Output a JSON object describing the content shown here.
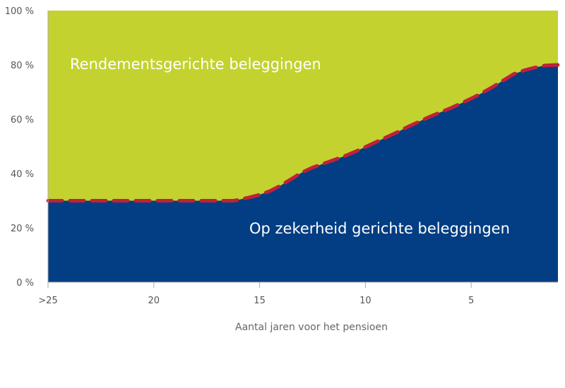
{
  "chart_data": {
    "type": "area",
    "xlabel": "Aantal jaren voor het pensioen",
    "ylabel": "",
    "x_ticks": [
      {
        "value": 25,
        "label": ">25"
      },
      {
        "value": 20,
        "label": "20"
      },
      {
        "value": 15,
        "label": "15"
      },
      {
        "value": 10,
        "label": "10"
      },
      {
        "value": 5,
        "label": "5"
      }
    ],
    "y_ticks": [
      {
        "value": 0,
        "label": "0 %"
      },
      {
        "value": 20,
        "label": "20 %"
      },
      {
        "value": 40,
        "label": "40 %"
      },
      {
        "value": 60,
        "label": "60 %"
      },
      {
        "value": 80,
        "label": "80 %"
      },
      {
        "value": 100,
        "label": "100 %"
      }
    ],
    "xlim": [
      25,
      0.9
    ],
    "ylim": [
      0,
      100
    ],
    "x_reversed": true,
    "grid": false,
    "series": [
      {
        "name": "Op zekerheid gerichte beleggingen",
        "color": "#033e84",
        "x": [
          25,
          22,
          20,
          18,
          16.2,
          15.5,
          15,
          14.5,
          14,
          13.5,
          13,
          12.5,
          12,
          11.5,
          11,
          10.5,
          10,
          9.5,
          9,
          8.5,
          8,
          7.5,
          7,
          6.5,
          6,
          5.5,
          5,
          4.5,
          4,
          3.5,
          3,
          2.5,
          2,
          1.5,
          0.9
        ],
        "values": [
          30,
          30,
          30,
          30,
          30,
          31.2,
          32.2,
          33.6,
          35.6,
          38.0,
          40.4,
          42.2,
          43.6,
          45.0,
          46.4,
          48.0,
          49.8,
          51.6,
          53.4,
          55.2,
          57.2,
          59.0,
          60.8,
          62.4,
          64.0,
          65.8,
          67.6,
          69.6,
          71.8,
          74.2,
          76.6,
          78.0,
          79.0,
          79.8,
          80.0
        ]
      },
      {
        "name": "Rendementsgerichte beleggingen",
        "color": "#c3d22f",
        "fill_to": 100
      }
    ],
    "boundary_line": {
      "color": "#c0213a",
      "style": "dashed"
    }
  }
}
